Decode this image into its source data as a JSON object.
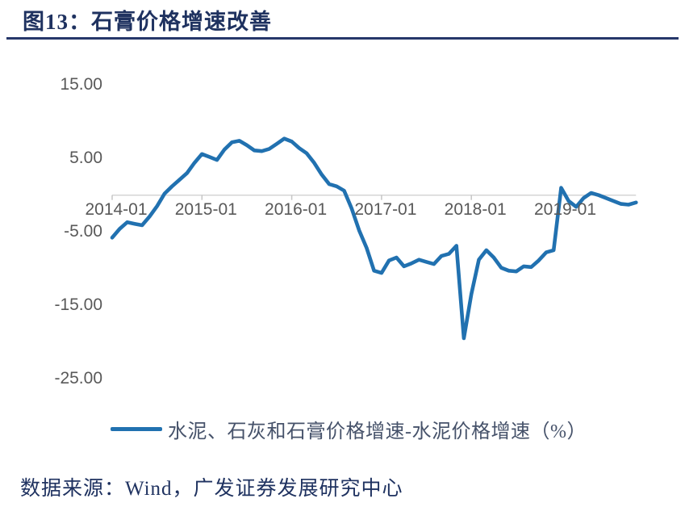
{
  "header": {
    "title": "图13：石膏价格增速改善"
  },
  "footer": {
    "source": "数据来源：Wind，广发证券发展研究中心"
  },
  "colors": {
    "line_blue": "#2171B0",
    "title_navy": "#1F3260",
    "rule_navy": "#26376A",
    "axis_gray": "#D5D5D5",
    "tick_gray": "#C6C6C6",
    "axis_label_gray": "#595959",
    "legend_text": "#46526A",
    "background": "#FFFFFF"
  },
  "chart_data": {
    "type": "line",
    "title": "图13：石膏价格增速改善",
    "legend": "水泥、石灰和石膏价格增速-水泥价格增速（%）",
    "legend_position": "bottom",
    "xlabel": "",
    "ylabel": "",
    "ylim": [
      -25,
      15
    ],
    "grid": "zero-axis-line-only",
    "y_tick_values": [
      15,
      5,
      -5,
      -15,
      -25
    ],
    "y_tick_labels": [
      "15.00",
      "5.00",
      "-5.00",
      "-15.00",
      "-25.00"
    ],
    "x_tick_labels": [
      "2014-01",
      "2015-01",
      "2016-01",
      "2017-01",
      "2018-01",
      "2019-01"
    ],
    "x_range": [
      "2014-01",
      "2019-11"
    ],
    "points": [
      [
        "2014-01",
        -5.8
      ],
      [
        "2014-02",
        -4.6
      ],
      [
        "2014-03",
        -3.7
      ],
      [
        "2014-04",
        -3.9
      ],
      [
        "2014-05",
        -4.1
      ],
      [
        "2014-06",
        -2.9
      ],
      [
        "2014-07",
        -1.5
      ],
      [
        "2014-08",
        0.2
      ],
      [
        "2014-09",
        1.2
      ],
      [
        "2014-10",
        2.1
      ],
      [
        "2014-11",
        3.0
      ],
      [
        "2014-12",
        4.4
      ],
      [
        "2015-01",
        5.6
      ],
      [
        "2015-02",
        5.2
      ],
      [
        "2015-03",
        4.8
      ],
      [
        "2015-04",
        6.2
      ],
      [
        "2015-05",
        7.2
      ],
      [
        "2015-06",
        7.4
      ],
      [
        "2015-07",
        6.8
      ],
      [
        "2015-08",
        6.1
      ],
      [
        "2015-09",
        6.0
      ],
      [
        "2015-10",
        6.3
      ],
      [
        "2015-11",
        7.0
      ],
      [
        "2015-12",
        7.7
      ],
      [
        "2016-01",
        7.3
      ],
      [
        "2016-02",
        6.4
      ],
      [
        "2016-03",
        5.7
      ],
      [
        "2016-04",
        4.4
      ],
      [
        "2016-05",
        2.8
      ],
      [
        "2016-06",
        1.5
      ],
      [
        "2016-07",
        1.2
      ],
      [
        "2016-08",
        0.6
      ],
      [
        "2016-09",
        -1.8
      ],
      [
        "2016-10",
        -4.8
      ],
      [
        "2016-11",
        -7.2
      ],
      [
        "2016-12",
        -10.3
      ],
      [
        "2017-01",
        -10.6
      ],
      [
        "2017-02",
        -8.9
      ],
      [
        "2017-03",
        -8.5
      ],
      [
        "2017-04",
        -9.7
      ],
      [
        "2017-05",
        -9.3
      ],
      [
        "2017-06",
        -8.8
      ],
      [
        "2017-07",
        -9.1
      ],
      [
        "2017-08",
        -9.4
      ],
      [
        "2017-09",
        -8.3
      ],
      [
        "2017-10",
        -8.0
      ],
      [
        "2017-11",
        -6.9
      ],
      [
        "2017-12",
        -19.5
      ],
      [
        "2018-01",
        -13.5
      ],
      [
        "2018-02",
        -8.8
      ],
      [
        "2018-03",
        -7.5
      ],
      [
        "2018-04",
        -8.5
      ],
      [
        "2018-05",
        -9.9
      ],
      [
        "2018-06",
        -10.3
      ],
      [
        "2018-07",
        -10.4
      ],
      [
        "2018-08",
        -9.7
      ],
      [
        "2018-09",
        -9.8
      ],
      [
        "2018-10",
        -8.9
      ],
      [
        "2018-11",
        -7.8
      ],
      [
        "2018-12",
        -7.5
      ],
      [
        "2019-01",
        1.0
      ],
      [
        "2019-02",
        -0.8
      ],
      [
        "2019-03",
        -1.6
      ],
      [
        "2019-04",
        -0.4
      ],
      [
        "2019-05",
        0.3
      ],
      [
        "2019-06",
        0.0
      ],
      [
        "2019-07",
        -0.4
      ],
      [
        "2019-08",
        -0.8
      ],
      [
        "2019-09",
        -1.2
      ],
      [
        "2019-10",
        -1.3
      ],
      [
        "2019-11",
        -1.0
      ]
    ]
  }
}
